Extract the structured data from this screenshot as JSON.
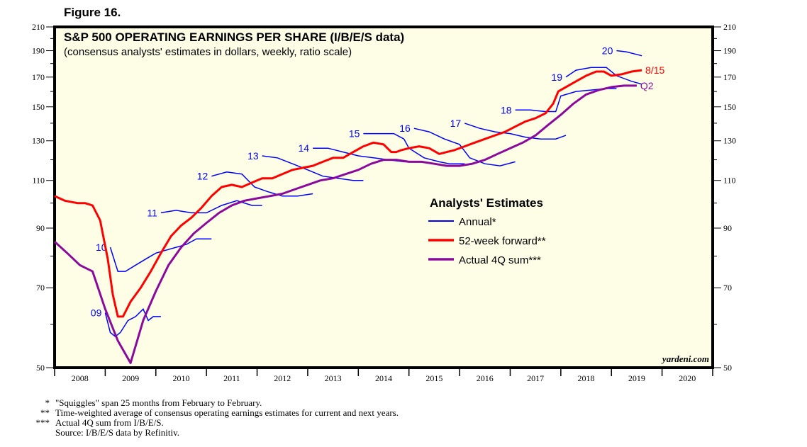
{
  "figure_label": "Figure 16.",
  "chart_data": {
    "type": "line",
    "title": "S&P 500 OPERATING EARNINGS PER SHARE (I/B/E/S data)",
    "subtitle": "(consensus analysts' estimates in dollars, weekly, ratio scale)",
    "y_scale": "log",
    "ylim": [
      50,
      210
    ],
    "y_ticks": [
      50,
      70,
      90,
      110,
      130,
      150,
      170,
      190,
      210
    ],
    "y_minor_ticks": [
      60,
      80,
      100,
      120,
      140,
      160,
      180,
      200
    ],
    "xlim": [
      2008.0,
      2021.0
    ],
    "x_tick_labels": [
      "2008",
      "2009",
      "2010",
      "2011",
      "2012",
      "2013",
      "2014",
      "2015",
      "2016",
      "2017",
      "2018",
      "2019",
      "2020"
    ],
    "grid": false,
    "watermark": "yardeni.com",
    "legend": {
      "title": "Analysts' Estimates",
      "placement": "center-right",
      "entries": [
        {
          "label": "Annual*",
          "color": "#0000ff"
        },
        {
          "label": "52-week forward**",
          "color": "#ff0000"
        },
        {
          "label": "Actual 4Q sum***",
          "color": "#8b0a9b"
        }
      ]
    },
    "series": [
      {
        "name": "52-week forward",
        "color": "#ff0000",
        "end_label": "8/15",
        "x": [
          2008.0,
          2008.2,
          2008.45,
          2008.6,
          2008.75,
          2008.9,
          2009.05,
          2009.15,
          2009.25,
          2009.35,
          2009.5,
          2009.7,
          2009.9,
          2010.1,
          2010.3,
          2010.5,
          2010.7,
          2010.9,
          2011.1,
          2011.3,
          2011.5,
          2011.7,
          2011.9,
          2012.1,
          2012.3,
          2012.5,
          2012.7,
          2012.9,
          2013.1,
          2013.3,
          2013.5,
          2013.7,
          2013.9,
          2014.1,
          2014.3,
          2014.5,
          2014.65,
          2014.75,
          2014.85,
          2015.0,
          2015.2,
          2015.4,
          2015.6,
          2015.75,
          2015.9,
          2016.1,
          2016.3,
          2016.5,
          2016.7,
          2016.9,
          2017.1,
          2017.3,
          2017.5,
          2017.7,
          2017.85,
          2017.95,
          2018.1,
          2018.3,
          2018.5,
          2018.7,
          2018.85,
          2019.0,
          2019.2,
          2019.4,
          2019.6
        ],
        "y": [
          103,
          101,
          100,
          100,
          99,
          93,
          79,
          68,
          62,
          62,
          66,
          70,
          75,
          81,
          87,
          91,
          94,
          98,
          103,
          107,
          108,
          107,
          109,
          111,
          111,
          113,
          115,
          116,
          117,
          119,
          121,
          121,
          124,
          127,
          129,
          128,
          124,
          124,
          125,
          126,
          127,
          126,
          123,
          124,
          125,
          127,
          129,
          131,
          133,
          135,
          138,
          141,
          143,
          146,
          152,
          160,
          163,
          167,
          171,
          174,
          174,
          171,
          172,
          174,
          175
        ]
      },
      {
        "name": "Actual 4Q sum",
        "color": "#8b0a9b",
        "end_label": "Q2",
        "x": [
          2008.0,
          2008.25,
          2008.5,
          2008.75,
          2009.0,
          2009.25,
          2009.5,
          2009.75,
          2010.0,
          2010.25,
          2010.5,
          2010.75,
          2011.0,
          2011.25,
          2011.5,
          2011.75,
          2012.0,
          2012.25,
          2012.5,
          2012.75,
          2013.0,
          2013.25,
          2013.5,
          2013.75,
          2014.0,
          2014.25,
          2014.5,
          2014.75,
          2015.0,
          2015.25,
          2015.5,
          2015.75,
          2016.0,
          2016.25,
          2016.5,
          2016.75,
          2017.0,
          2017.25,
          2017.5,
          2017.75,
          2018.0,
          2018.25,
          2018.5,
          2018.75,
          2019.0,
          2019.25,
          2019.5
        ],
        "y": [
          85,
          81,
          77,
          75,
          64,
          56,
          51,
          61,
          69,
          77,
          83,
          88,
          92,
          96,
          99,
          101,
          102,
          103,
          104,
          106,
          108,
          110,
          111,
          113,
          115,
          118,
          120,
          120,
          119,
          119,
          118,
          117,
          117,
          118,
          120,
          123,
          126,
          129,
          133,
          139,
          145,
          152,
          158,
          161,
          163,
          164,
          164
        ]
      }
    ],
    "annual_series": [
      {
        "label": "09",
        "color": "#0000ff",
        "x": [
          2009.0,
          2009.1,
          2009.2,
          2009.3,
          2009.45,
          2009.6,
          2009.75,
          2009.85,
          2009.95,
          2010.1
        ],
        "y": [
          63,
          58,
          57,
          58,
          61,
          62,
          64,
          61,
          62,
          62
        ]
      },
      {
        "label": "10",
        "color": "#0000ff",
        "x": [
          2009.1,
          2009.25,
          2009.4,
          2009.6,
          2009.8,
          2010.0,
          2010.2,
          2010.4,
          2010.6,
          2010.8,
          2011.1
        ],
        "y": [
          83,
          75,
          75,
          77,
          79,
          81,
          82,
          83,
          84,
          86,
          86
        ]
      },
      {
        "label": "11",
        "color": "#0000ff",
        "x": [
          2010.1,
          2010.4,
          2010.7,
          2011.0,
          2011.3,
          2011.6,
          2011.9,
          2012.1
        ],
        "y": [
          96,
          97,
          96,
          96,
          99,
          101,
          99,
          99
        ]
      },
      {
        "label": "12",
        "color": "#0000ff",
        "x": [
          2011.1,
          2011.4,
          2011.7,
          2011.95,
          2012.2,
          2012.5,
          2012.8,
          2013.1
        ],
        "y": [
          112,
          114,
          113,
          107,
          105,
          103,
          103,
          104
        ]
      },
      {
        "label": "13",
        "color": "#0000ff",
        "x": [
          2012.1,
          2012.4,
          2012.7,
          2013.0,
          2013.3,
          2013.6,
          2013.9,
          2014.1
        ],
        "y": [
          122,
          121,
          118,
          115,
          112,
          111,
          110,
          110
        ]
      },
      {
        "label": "14",
        "color": "#0000ff",
        "x": [
          2013.1,
          2013.4,
          2013.7,
          2014.0,
          2014.3,
          2014.6,
          2014.9,
          2015.1
        ],
        "y": [
          126,
          126,
          124,
          122,
          121,
          120,
          119,
          119
        ]
      },
      {
        "label": "15",
        "color": "#0000ff",
        "x": [
          2014.1,
          2014.4,
          2014.7,
          2014.9,
          2015.0,
          2015.3,
          2015.6,
          2015.8,
          2016.1
        ],
        "y": [
          134,
          134,
          134,
          131,
          126,
          121,
          119,
          118,
          118
        ]
      },
      {
        "label": "16",
        "color": "#0000ff",
        "x": [
          2015.1,
          2015.4,
          2015.7,
          2016.0,
          2016.2,
          2016.5,
          2016.8,
          2017.1
        ],
        "y": [
          137,
          135,
          131,
          128,
          121,
          118,
          117,
          119
        ]
      },
      {
        "label": "17",
        "color": "#0000ff",
        "x": [
          2016.1,
          2016.4,
          2016.7,
          2017.0,
          2017.3,
          2017.6,
          2017.9,
          2018.1
        ],
        "y": [
          140,
          137,
          135,
          134,
          132,
          131,
          131,
          133
        ]
      },
      {
        "label": "18",
        "color": "#0000ff",
        "x": [
          2017.1,
          2017.4,
          2017.7,
          2017.9,
          2018.0,
          2018.3,
          2018.6,
          2018.9,
          2019.1
        ],
        "y": [
          148,
          148,
          147,
          147,
          157,
          160,
          161,
          162,
          162
        ]
      },
      {
        "label": "19",
        "color": "#0000ff",
        "x": [
          2018.1,
          2018.3,
          2018.6,
          2018.9,
          2019.1,
          2019.4,
          2019.6
        ],
        "y": [
          170,
          175,
          177,
          177,
          171,
          167,
          165
        ]
      },
      {
        "label": "20",
        "color": "#0000ff",
        "x": [
          2019.1,
          2019.3,
          2019.6
        ],
        "y": [
          190,
          189,
          186
        ]
      }
    ]
  },
  "footnotes": [
    {
      "mark": "*",
      "text": "\"Squiggles\" span 25 months from February to February."
    },
    {
      "mark": "**",
      "text": "Time-weighted average of consensus operating earnings estimates for current and next years."
    },
    {
      "mark": "***",
      "text": "Actual 4Q sum from I/B/E/S."
    },
    {
      "mark": "",
      "text": "Source: I/B/E/S data by Refinitiv."
    }
  ]
}
